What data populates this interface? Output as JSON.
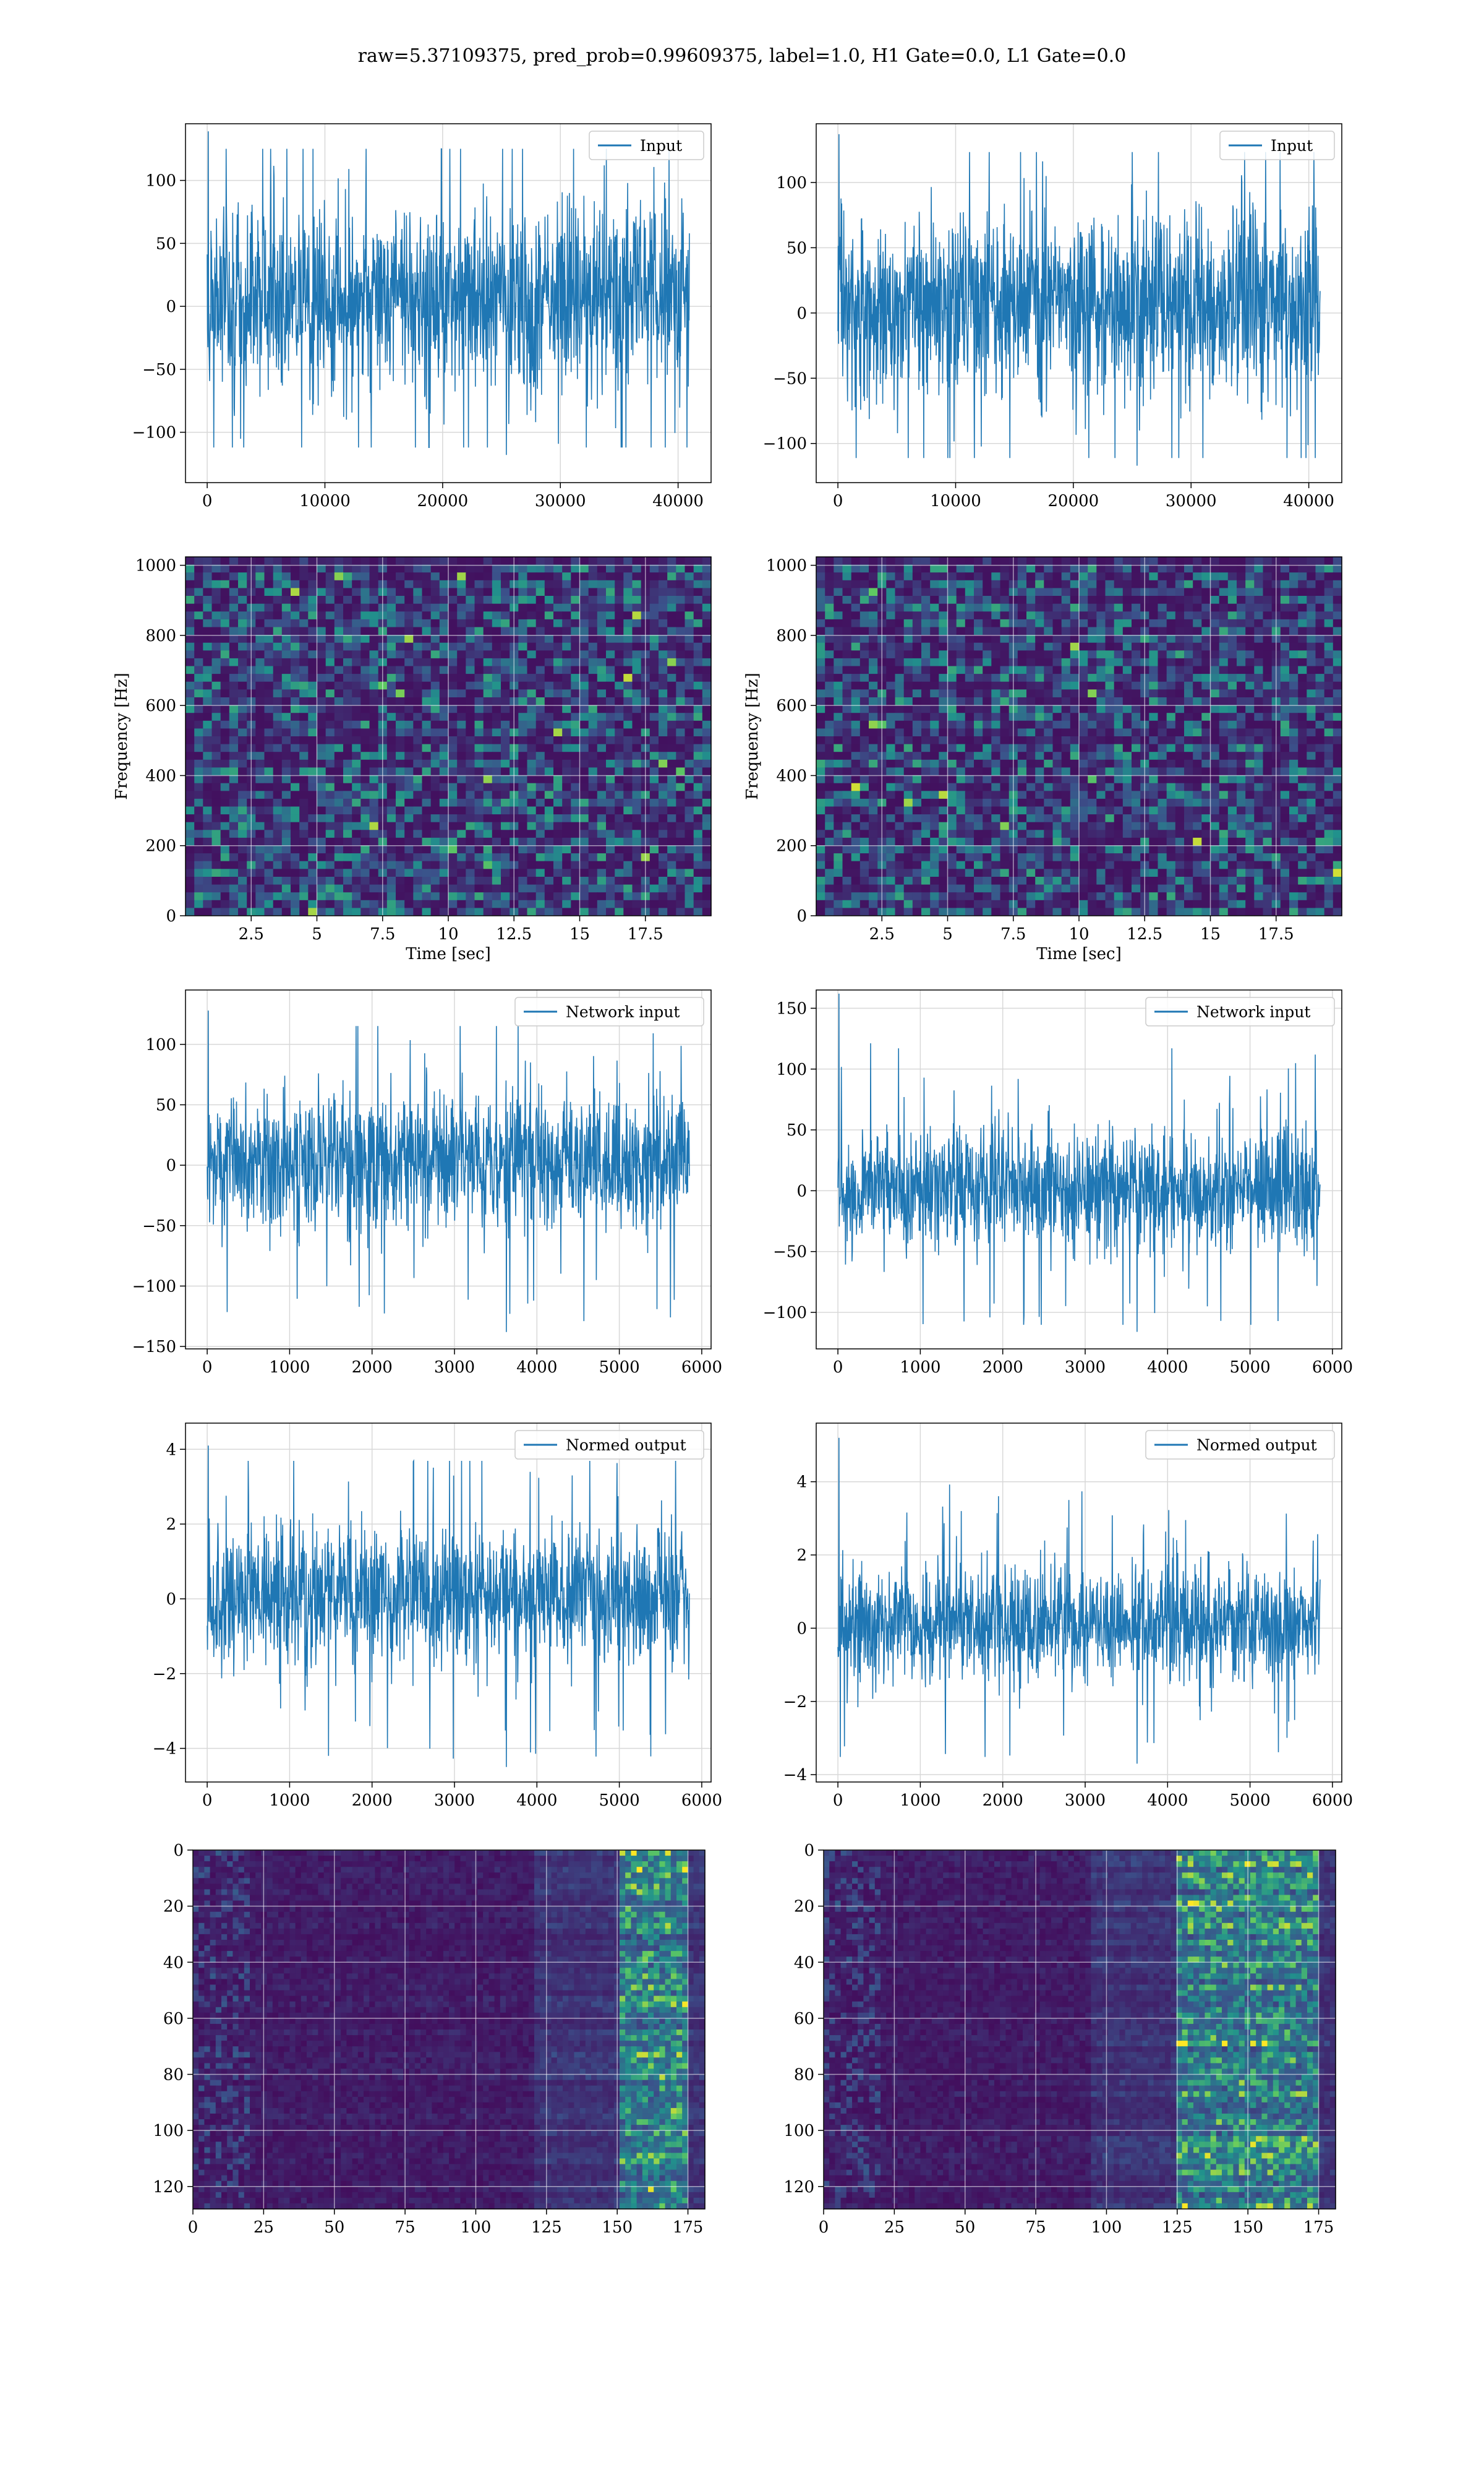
{
  "figure": {
    "suptitle": "raw=5.37109375, pred_prob=0.99609375, label=1.0, H1 Gate=0.0, L1 Gate=0.0"
  },
  "colors": {
    "series": "#1f77b4",
    "grid": "#d8d8d8",
    "viridis_low": "#440154",
    "viridis_mid": "#21918c",
    "viridis_high": "#fde725"
  },
  "chart_data": [
    {
      "type": "line",
      "panel": "row1-left",
      "legend": "Input",
      "legend_position": "top-right",
      "grid": true,
      "x_range": [
        0,
        40960
      ],
      "ylim": [
        -140,
        145
      ],
      "xticks": [
        0,
        10000,
        20000,
        30000,
        40000
      ],
      "yticks": [
        -100,
        -50,
        0,
        50,
        100
      ],
      "envelope": {
        "typical_min": -72,
        "typical_max": 85,
        "peak_min": -118,
        "peak_max": 139
      },
      "xlabel": "",
      "ylabel": ""
    },
    {
      "type": "line",
      "panel": "row1-right",
      "legend": "Input",
      "legend_position": "top-right",
      "grid": true,
      "x_range": [
        0,
        40960
      ],
      "ylim": [
        -130,
        145
      ],
      "xticks": [
        0,
        10000,
        20000,
        30000,
        40000
      ],
      "yticks": [
        -100,
        -50,
        0,
        50,
        100
      ],
      "envelope": {
        "typical_min": -68,
        "typical_max": 82,
        "peak_min": -117,
        "peak_max": 137
      },
      "xlabel": "",
      "ylabel": ""
    },
    {
      "type": "heatmap",
      "panel": "row2-left",
      "grid": true,
      "x_range": [
        0,
        20
      ],
      "y_range": [
        0,
        1024
      ],
      "xticks": [
        2.5,
        5.0,
        7.5,
        10.0,
        12.5,
        15.0,
        17.5
      ],
      "yticks": [
        0,
        200,
        400,
        600,
        800,
        1000
      ],
      "xlabel": "Time [sec]",
      "ylabel": "Frequency [Hz]",
      "colormap": "viridis"
    },
    {
      "type": "heatmap",
      "panel": "row2-right",
      "grid": true,
      "x_range": [
        0,
        20
      ],
      "y_range": [
        0,
        1024
      ],
      "xticks": [
        2.5,
        5.0,
        7.5,
        10.0,
        12.5,
        15.0,
        17.5
      ],
      "yticks": [
        0,
        200,
        400,
        600,
        800,
        1000
      ],
      "xlabel": "Time [sec]",
      "ylabel": "Frequency [Hz]",
      "colormap": "viridis"
    },
    {
      "type": "line",
      "panel": "row3-left",
      "legend": "Network input",
      "legend_position": "top-right",
      "grid": true,
      "x_range": [
        0,
        5850
      ],
      "ylim": [
        -152,
        145
      ],
      "xticks": [
        0,
        1000,
        2000,
        3000,
        4000,
        5000,
        6000
      ],
      "yticks": [
        -150,
        -100,
        -50,
        0,
        50,
        100
      ],
      "envelope": {
        "typical_min": -58,
        "typical_max": 63,
        "peak_min": -138,
        "peak_max": 128
      },
      "xlabel": "",
      "ylabel": ""
    },
    {
      "type": "line",
      "panel": "row3-right",
      "legend": "Network input",
      "legend_position": "top-right",
      "grid": true,
      "x_range": [
        0,
        5850
      ],
      "ylim": [
        -130,
        165
      ],
      "xticks": [
        0,
        1000,
        2000,
        3000,
        4000,
        5000,
        6000
      ],
      "yticks": [
        -100,
        -50,
        0,
        50,
        100,
        150
      ],
      "envelope": {
        "typical_min": -50,
        "typical_max": 55,
        "peak_min": -116,
        "peak_max": 162
      },
      "xlabel": "",
      "ylabel": ""
    },
    {
      "type": "line",
      "panel": "row4-left",
      "legend": "Normed output",
      "legend_position": "top-right",
      "grid": true,
      "x_range": [
        0,
        5850
      ],
      "ylim": [
        -4.9,
        4.7
      ],
      "xticks": [
        0,
        1000,
        2000,
        3000,
        4000,
        5000,
        6000
      ],
      "yticks": [
        -4,
        -2,
        0,
        2,
        4
      ],
      "envelope": {
        "typical_min": -1.9,
        "typical_max": 2.0,
        "peak_min": -4.5,
        "peak_max": 4.1
      },
      "xlabel": "",
      "ylabel": ""
    },
    {
      "type": "line",
      "panel": "row4-right",
      "legend": "Normed output",
      "legend_position": "top-right",
      "grid": true,
      "x_range": [
        0,
        5850
      ],
      "ylim": [
        -4.2,
        5.6
      ],
      "xticks": [
        0,
        1000,
        2000,
        3000,
        4000,
        5000,
        6000
      ],
      "yticks": [
        -4,
        -2,
        0,
        2,
        4
      ],
      "envelope": {
        "typical_min": -1.6,
        "typical_max": 1.8,
        "peak_min": -3.7,
        "peak_max": 5.2
      },
      "xlabel": "",
      "ylabel": ""
    },
    {
      "type": "heatmap",
      "panel": "row5-left",
      "grid": true,
      "x_range": [
        0,
        181
      ],
      "y_range": [
        0,
        128
      ],
      "y_inverted": true,
      "xticks": [
        0,
        25,
        50,
        75,
        100,
        125,
        150,
        175
      ],
      "yticks": [
        0,
        20,
        40,
        60,
        80,
        100,
        120
      ],
      "xlabel": "",
      "ylabel": "",
      "colormap": "viridis",
      "bright_x_range": [
        150,
        175
      ]
    },
    {
      "type": "heatmap",
      "panel": "row5-right",
      "grid": true,
      "x_range": [
        0,
        181
      ],
      "y_range": [
        0,
        128
      ],
      "y_inverted": true,
      "xticks": [
        0,
        25,
        50,
        75,
        100,
        125,
        150,
        175
      ],
      "yticks": [
        0,
        20,
        40,
        60,
        80,
        100,
        120
      ],
      "xlabel": "",
      "ylabel": "",
      "colormap": "viridis",
      "bright_x_range": [
        125,
        175
      ]
    }
  ]
}
